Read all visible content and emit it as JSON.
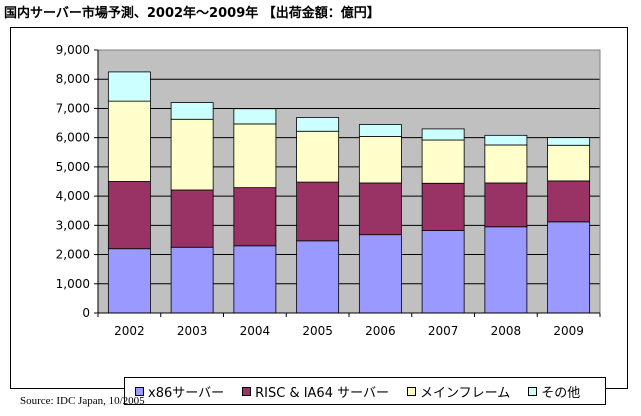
{
  "title": "国内サーバー市場予測、2002年～2009年 【出荷金額：億円】",
  "source": "Source: IDC Japan, 10/2005",
  "chart_data": {
    "type": "bar",
    "stacked": true,
    "categories": [
      "2002",
      "2003",
      "2004",
      "2005",
      "2006",
      "2007",
      "2008",
      "2009"
    ],
    "ylim": [
      0,
      9000
    ],
    "y_ticks": [
      "0",
      "1,000",
      "2,000",
      "3,000",
      "4,000",
      "5,000",
      "6,000",
      "7,000",
      "8,000",
      "9,000"
    ],
    "y_tick_values": [
      0,
      1000,
      2000,
      3000,
      4000,
      5000,
      6000,
      7000,
      8000,
      9000
    ],
    "grid": true,
    "legend_position": "bottom",
    "series": [
      {
        "name": "x86サーバー",
        "color": "#9999ff",
        "values": [
          2200,
          2250,
          2300,
          2470,
          2680,
          2820,
          2950,
          3120
        ]
      },
      {
        "name": "RISC & IA64 サーバー",
        "color": "#993366",
        "values": [
          2300,
          1960,
          1990,
          2010,
          1770,
          1620,
          1500,
          1400
        ]
      },
      {
        "name": "メインフレーム",
        "color": "#ffffcc",
        "values": [
          2750,
          2420,
          2180,
          1740,
          1590,
          1480,
          1300,
          1220
        ]
      },
      {
        "name": "その他",
        "color": "#ccffff",
        "values": [
          1000,
          570,
          520,
          470,
          410,
          380,
          330,
          260
        ]
      }
    ]
  }
}
